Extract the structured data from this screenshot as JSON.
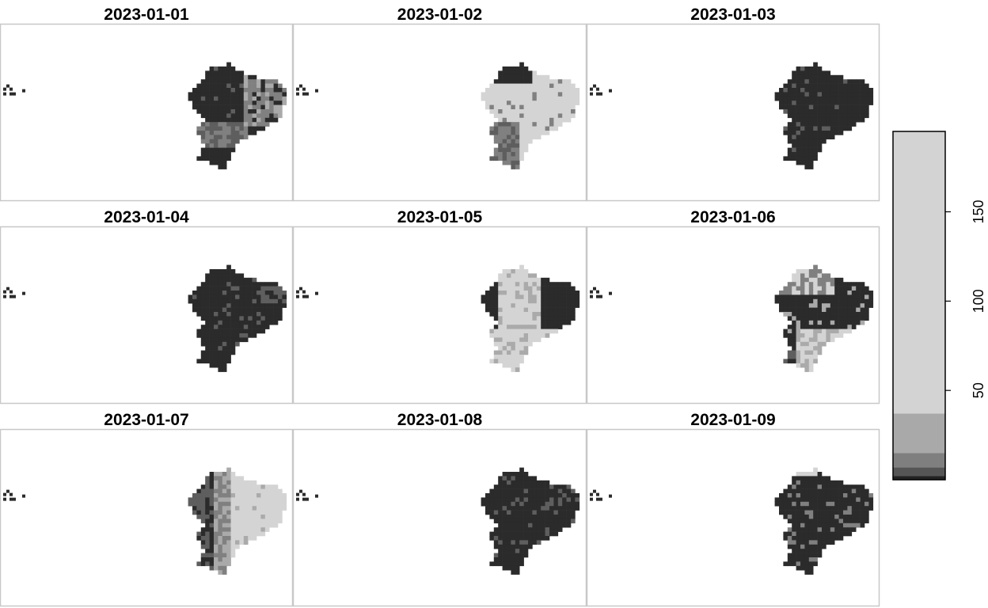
{
  "chart_data": {
    "type": "heatmap",
    "panels": [
      {
        "title": "2023-01-01",
        "pattern": "mixed_east"
      },
      {
        "title": "2023-01-02",
        "pattern": "light_north"
      },
      {
        "title": "2023-01-03",
        "pattern": "dark"
      },
      {
        "title": "2023-01-04",
        "pattern": "dark_patchy"
      },
      {
        "title": "2023-01-05",
        "pattern": "light_center"
      },
      {
        "title": "2023-01-06",
        "pattern": "mixed_south"
      },
      {
        "title": "2023-01-07",
        "pattern": "light_east"
      },
      {
        "title": "2023-01-08",
        "pattern": "dark_patchy"
      },
      {
        "title": "2023-01-09",
        "pattern": "dark_speckled"
      }
    ],
    "legend": {
      "ticks": [
        50,
        100,
        150
      ],
      "range": [
        0,
        195
      ],
      "bands": [
        {
          "from": 0,
          "to": 2,
          "color": "#222222"
        },
        {
          "from": 2,
          "to": 7,
          "color": "#555555"
        },
        {
          "from": 7,
          "to": 15,
          "color": "#7f7f7f"
        },
        {
          "from": 15,
          "to": 37,
          "color": "#a9a9a9"
        },
        {
          "from": 37,
          "to": 195,
          "color": "#d3d3d3"
        }
      ]
    },
    "colors": {
      "dark": "#2b2b2b",
      "mid": "#5e5e5e",
      "mid_light": "#808080",
      "light": "#aaaaaa",
      "very_light": "#d4d4d4"
    }
  }
}
